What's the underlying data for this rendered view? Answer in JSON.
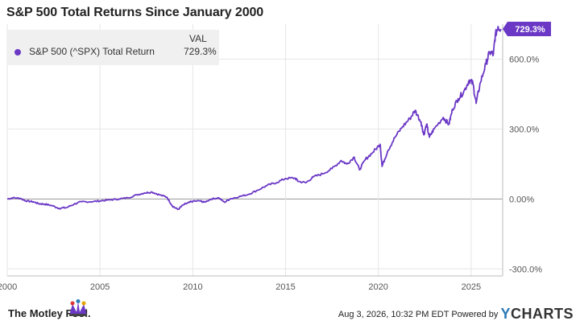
{
  "title": "S&P 500 Total Returns Since January 2000",
  "legend": {
    "header": "VAL",
    "series_name": "S&P 500 (^SPX) Total Return",
    "series_value": "729.3%"
  },
  "footer": {
    "brand": "The Motley Fool.",
    "timestamp": "Aug 3, 2026, 10:32 PM EDT",
    "powered_by": "Powered by",
    "provider": "CHARTS",
    "provider_initial": "Y"
  },
  "colors": {
    "line": "#6b38c6",
    "zero_line": "#999999",
    "grid": "#e6e6e6"
  },
  "chart_data": {
    "type": "line",
    "title": "S&P 500 Total Returns Since January 2000",
    "series": [
      {
        "name": "S&P 500 (^SPX) Total Return",
        "last_value_label": "729.3%",
        "points": [
          [
            2000.0,
            0
          ],
          [
            2000.3,
            5
          ],
          [
            2000.7,
            3
          ],
          [
            2001.0,
            -8
          ],
          [
            2001.4,
            -12
          ],
          [
            2001.7,
            -20
          ],
          [
            2002.0,
            -22
          ],
          [
            2002.4,
            -28
          ],
          [
            2002.8,
            -40
          ],
          [
            2003.2,
            -37
          ],
          [
            2003.6,
            -22
          ],
          [
            2004.0,
            -12
          ],
          [
            2004.5,
            -12
          ],
          [
            2005.0,
            -8
          ],
          [
            2005.5,
            -4
          ],
          [
            2006.0,
            0
          ],
          [
            2006.5,
            5
          ],
          [
            2007.0,
            18
          ],
          [
            2007.4,
            26
          ],
          [
            2007.8,
            30
          ],
          [
            2008.2,
            18
          ],
          [
            2008.6,
            8
          ],
          [
            2008.9,
            -30
          ],
          [
            2009.2,
            -45
          ],
          [
            2009.5,
            -25
          ],
          [
            2009.8,
            -15
          ],
          [
            2010.0,
            -10
          ],
          [
            2010.4,
            -8
          ],
          [
            2010.6,
            -14
          ],
          [
            2011.0,
            0
          ],
          [
            2011.4,
            5
          ],
          [
            2011.7,
            -14
          ],
          [
            2012.0,
            0
          ],
          [
            2012.5,
            10
          ],
          [
            2013.0,
            20
          ],
          [
            2013.5,
            38
          ],
          [
            2014.0,
            58
          ],
          [
            2014.5,
            70
          ],
          [
            2015.0,
            88
          ],
          [
            2015.5,
            90
          ],
          [
            2015.7,
            75
          ],
          [
            2016.1,
            70
          ],
          [
            2016.5,
            95
          ],
          [
            2017.0,
            108
          ],
          [
            2017.5,
            130
          ],
          [
            2018.0,
            165
          ],
          [
            2018.3,
            150
          ],
          [
            2018.7,
            180
          ],
          [
            2018.98,
            125
          ],
          [
            2019.3,
            170
          ],
          [
            2019.7,
            200
          ],
          [
            2020.1,
            235
          ],
          [
            2020.2,
            140
          ],
          [
            2020.5,
            205
          ],
          [
            2020.9,
            265
          ],
          [
            2021.3,
            310
          ],
          [
            2021.7,
            345
          ],
          [
            2021.98,
            380
          ],
          [
            2022.3,
            330
          ],
          [
            2022.45,
            275
          ],
          [
            2022.6,
            320
          ],
          [
            2022.75,
            265
          ],
          [
            2023.0,
            300
          ],
          [
            2023.5,
            350
          ],
          [
            2023.8,
            320
          ],
          [
            2024.0,
            385
          ],
          [
            2024.3,
            430
          ],
          [
            2024.6,
            460
          ],
          [
            2024.9,
            510
          ],
          [
            2025.1,
            495
          ],
          [
            2025.27,
            410
          ],
          [
            2025.5,
            500
          ],
          [
            2025.8,
            580
          ],
          [
            2026.0,
            630
          ],
          [
            2026.2,
            620
          ],
          [
            2026.3,
            700
          ],
          [
            2026.45,
            740
          ],
          [
            2026.6,
            729.3
          ]
        ]
      }
    ],
    "x_ticks": [
      "2000",
      "2005",
      "2010",
      "2015",
      "2020",
      "2025"
    ],
    "x_tick_values": [
      2000,
      2005,
      2010,
      2015,
      2020,
      2025
    ],
    "y_ticks": [
      "600.0%",
      "300.0%",
      "0.00%",
      "-300.0%"
    ],
    "y_tick_values": [
      600,
      300,
      0,
      -300
    ],
    "xlim": [
      2000.0,
      2026.7
    ],
    "ylim": [
      -330,
      750
    ],
    "grid": true,
    "legend_position": "top-left"
  }
}
